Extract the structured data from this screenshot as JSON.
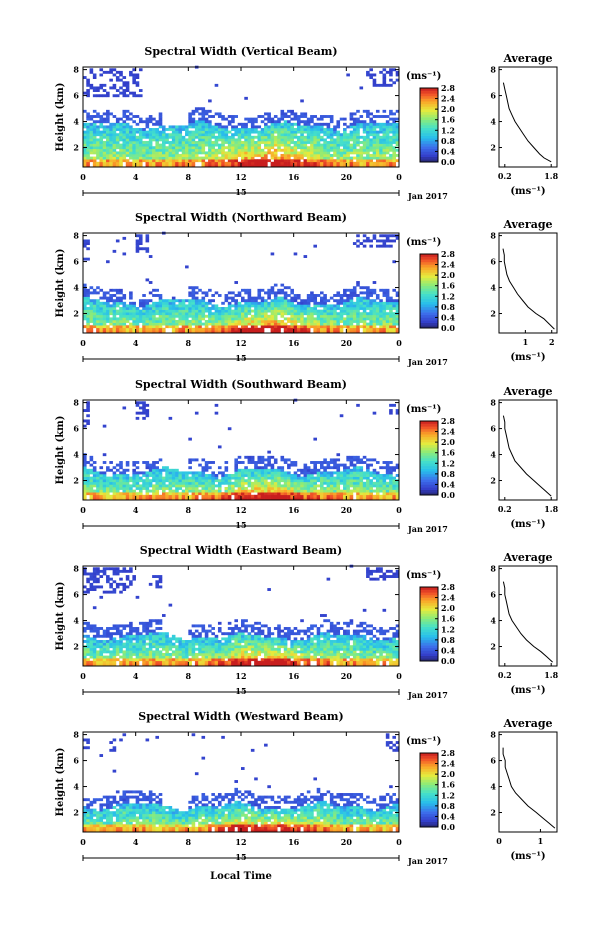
{
  "chart_data": [
    {
      "type": "heatmap",
      "title": "Spectral Width (Vertical Beam)",
      "ylabel": "Height (km)",
      "xlim": [
        0,
        24
      ],
      "ylim": [
        0.5,
        8.2
      ],
      "x_ticks": [
        "0",
        "4",
        "8",
        "12",
        "16",
        "20",
        "0"
      ],
      "y_ticks": [
        "2",
        "4",
        "6",
        "8"
      ],
      "date_tick": "15",
      "date_label": "Jan 2017",
      "colorbar": {
        "unit_label": "(ms⁻¹)",
        "ticks": [
          "0.0",
          "0.4",
          "0.8",
          "1.2",
          "1.6",
          "2.0",
          "2.4",
          "2.8"
        ],
        "range": [
          0,
          2.8
        ]
      },
      "average": {
        "title": "Average",
        "xlabel": "(ms⁻¹)",
        "x_ticks": [
          "0.2",
          "1.8"
        ],
        "xlim": [
          0,
          2.0
        ],
        "y_ticks": [
          "2",
          "4",
          "6",
          "8"
        ],
        "ylim": [
          0.5,
          8.2
        ],
        "profile": {
          "height": [
            0.9,
            1.2,
            1.5,
            2.0,
            2.5,
            3.0,
            3.5,
            4.0,
            4.5,
            5.0,
            5.5,
            6.0,
            6.5,
            7.0
          ],
          "width": [
            1.8,
            1.55,
            1.4,
            1.2,
            1.0,
            0.85,
            0.7,
            0.55,
            0.45,
            0.35,
            0.3,
            0.25,
            0.2,
            0.15
          ]
        }
      }
    },
    {
      "type": "heatmap",
      "title": "Spectral Width (Northward Beam)",
      "ylabel": "Height (km)",
      "xlim": [
        0,
        24
      ],
      "ylim": [
        0.5,
        8.2
      ],
      "x_ticks": [
        "0",
        "4",
        "8",
        "12",
        "16",
        "20",
        "0"
      ],
      "y_ticks": [
        "2",
        "4",
        "6",
        "8"
      ],
      "date_tick": "15",
      "date_label": "Jan 2017",
      "colorbar": {
        "unit_label": "(ms⁻¹)",
        "ticks": [
          "0.0",
          "0.4",
          "0.8",
          "1.2",
          "1.6",
          "2.0",
          "2.4",
          "2.8"
        ],
        "range": [
          0,
          2.8
        ]
      },
      "average": {
        "title": "Average",
        "xlabel": "(ms⁻¹)",
        "x_ticks": [
          "1",
          "2"
        ],
        "xlim": [
          0,
          2.2
        ],
        "y_ticks": [
          "2",
          "4",
          "6",
          "8"
        ],
        "ylim": [
          0.5,
          8.2
        ],
        "profile": {
          "height": [
            0.8,
            1.2,
            1.6,
            2.0,
            2.5,
            3.0,
            3.5,
            4.0,
            4.5,
            5.0,
            5.5,
            6.0,
            6.5,
            7.0
          ],
          "width": [
            2.1,
            1.9,
            1.7,
            1.4,
            1.1,
            0.9,
            0.7,
            0.55,
            0.4,
            0.3,
            0.25,
            0.2,
            0.2,
            0.15
          ]
        }
      }
    },
    {
      "type": "heatmap",
      "title": "Spectral Width (Southward Beam)",
      "ylabel": "Height (km)",
      "xlim": [
        0,
        24
      ],
      "ylim": [
        0.5,
        8.2
      ],
      "x_ticks": [
        "0",
        "4",
        "8",
        "12",
        "16",
        "20",
        "0"
      ],
      "y_ticks": [
        "2",
        "4",
        "6",
        "8"
      ],
      "date_tick": "15",
      "date_label": "Jan 2017",
      "colorbar": {
        "unit_label": "(ms⁻¹)",
        "ticks": [
          "0.0",
          "0.4",
          "0.8",
          "1.2",
          "1.6",
          "2.0",
          "2.4",
          "2.8"
        ],
        "range": [
          0,
          2.8
        ]
      },
      "average": {
        "title": "Average",
        "xlabel": "(ms⁻¹)",
        "x_ticks": [
          "0.2",
          "1.8"
        ],
        "xlim": [
          0,
          2.0
        ],
        "y_ticks": [
          "2",
          "4",
          "6",
          "8"
        ],
        "ylim": [
          0.5,
          8.2
        ],
        "profile": {
          "height": [
            0.8,
            1.2,
            1.6,
            2.0,
            2.5,
            3.0,
            3.5,
            4.0,
            4.5,
            5.0,
            5.5,
            6.0,
            6.5,
            7.0
          ],
          "width": [
            1.8,
            1.6,
            1.4,
            1.2,
            0.95,
            0.75,
            0.55,
            0.45,
            0.35,
            0.3,
            0.25,
            0.2,
            0.2,
            0.15
          ]
        }
      }
    },
    {
      "type": "heatmap",
      "title": "Spectral Width (Eastward Beam)",
      "ylabel": "Height (km)",
      "xlim": [
        0,
        24
      ],
      "ylim": [
        0.5,
        8.2
      ],
      "x_ticks": [
        "0",
        "4",
        "8",
        "12",
        "16",
        "20",
        "0"
      ],
      "y_ticks": [
        "2",
        "4",
        "6",
        "8"
      ],
      "date_tick": "15",
      "date_label": "Jan 2017",
      "colorbar": {
        "unit_label": "(ms⁻¹)",
        "ticks": [
          "0.0",
          "0.4",
          "0.8",
          "1.2",
          "1.6",
          "2.0",
          "2.4",
          "2.8"
        ],
        "range": [
          0,
          2.8
        ]
      },
      "average": {
        "title": "Average",
        "xlabel": "(ms⁻¹)",
        "x_ticks": [
          "0.2",
          "1.8"
        ],
        "xlim": [
          0,
          2.0
        ],
        "y_ticks": [
          "2",
          "4",
          "6",
          "8"
        ],
        "ylim": [
          0.5,
          8.2
        ],
        "profile": {
          "height": [
            0.8,
            1.2,
            1.6,
            2.0,
            2.5,
            3.0,
            3.5,
            4.0,
            4.5,
            5.0,
            5.5,
            6.0,
            6.5,
            7.0
          ],
          "width": [
            1.85,
            1.65,
            1.45,
            1.2,
            0.95,
            0.75,
            0.6,
            0.45,
            0.35,
            0.3,
            0.25,
            0.2,
            0.2,
            0.15
          ]
        }
      }
    },
    {
      "type": "heatmap",
      "title": "Spectral Width (Westward Beam)",
      "ylabel": "Height (km)",
      "xlim": [
        0,
        24
      ],
      "ylim": [
        0.5,
        8.2
      ],
      "x_ticks": [
        "0",
        "4",
        "8",
        "12",
        "16",
        "20",
        "0"
      ],
      "y_ticks": [
        "2",
        "4",
        "6",
        "8"
      ],
      "date_tick": "15",
      "date_label": "Jan 2017",
      "xlabel": "Local Time",
      "colorbar": {
        "unit_label": "(ms⁻¹)",
        "ticks": [
          "0.0",
          "0.4",
          "0.8",
          "1.2",
          "1.6",
          "2.0",
          "2.4",
          "2.8"
        ],
        "range": [
          0,
          2.8
        ]
      },
      "average": {
        "title": "Average",
        "xlabel": "(ms⁻¹)",
        "x_ticks": [
          "0",
          "1"
        ],
        "xlim": [
          0,
          1.4
        ],
        "y_ticks": [
          "2",
          "4",
          "6",
          "8"
        ],
        "ylim": [
          0.5,
          8.2
        ],
        "profile": {
          "height": [
            0.8,
            1.2,
            1.6,
            2.0,
            2.5,
            3.0,
            3.5,
            4.0,
            4.5,
            5.0,
            5.5,
            6.0,
            6.5,
            7.0
          ],
          "width": [
            1.35,
            1.2,
            1.05,
            0.9,
            0.7,
            0.55,
            0.4,
            0.3,
            0.25,
            0.2,
            0.15,
            0.15,
            0.1,
            0.1
          ]
        }
      }
    }
  ]
}
